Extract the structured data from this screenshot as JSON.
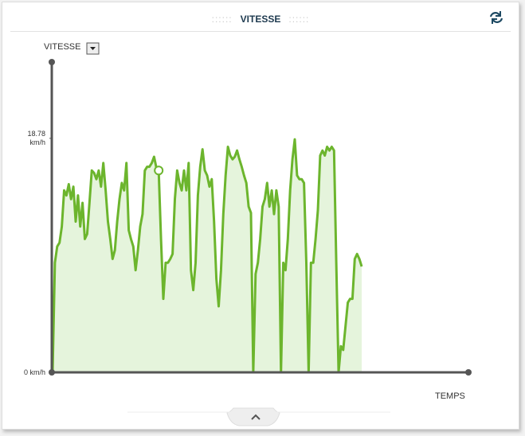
{
  "chart_data": {
    "type": "area",
    "title": "VITESSE",
    "y_label": "VITESSE",
    "x_label": "TEMPS",
    "color": "#6cb52d",
    "fill": "#e5f4dc",
    "ylim": [
      0,
      24.9
    ],
    "yticks": [
      {
        "value": 0,
        "label": "0 km/h"
      },
      {
        "value": 18.78,
        "label": "18.78 km/h"
      }
    ],
    "highlight_index": 46,
    "values": [
      0,
      8.8,
      10.1,
      10.4,
      11.7,
      14.6,
      14.2,
      15.1,
      13.9,
      14.9,
      12.1,
      14.2,
      11.7,
      13.6,
      10.7,
      11.1,
      13.6,
      16.2,
      16.0,
      15.5,
      16.2,
      14.9,
      16.8,
      14.6,
      12.1,
      10.7,
      9.1,
      9.8,
      12.1,
      13.9,
      15.2,
      14.6,
      16.8,
      11.4,
      10.7,
      10.1,
      8.2,
      9.8,
      11.7,
      12.7,
      16.2,
      16.5,
      16.5,
      16.8,
      17.3,
      16.4,
      16.2,
      10.7,
      5.9,
      8.8,
      8.8,
      9.1,
      9.5,
      13.9,
      16.2,
      15.2,
      14.6,
      16.2,
      14.6,
      16.8,
      8.2,
      6.6,
      8.8,
      14.2,
      16.5,
      17.9,
      16.2,
      15.8,
      14.9,
      15.5,
      12.1,
      7.5,
      5.3,
      8.2,
      12.7,
      15.8,
      18.1,
      17.4,
      17.1,
      17.3,
      17.8,
      17.1,
      16.5,
      15.8,
      15.2,
      13.3,
      12.8,
      0,
      7.9,
      8.8,
      10.7,
      13.3,
      13.9,
      15.2,
      13.3,
      14.6,
      12.7,
      14.6,
      13.3,
      0,
      8.8,
      8.2,
      10.7,
      14.6,
      17.1,
      18.7,
      15.8,
      15.5,
      15.5,
      15.2,
      8.8,
      0,
      8.8,
      8.8,
      10.7,
      13.0,
      17.4,
      17.8,
      17.4,
      18.1,
      17.8,
      18.1,
      17.8,
      8.8,
      0,
      2.1,
      1.8,
      3.7,
      5.6,
      5.9,
      5.9,
      9.1,
      9.5,
      9.1,
      8.5
    ]
  }
}
